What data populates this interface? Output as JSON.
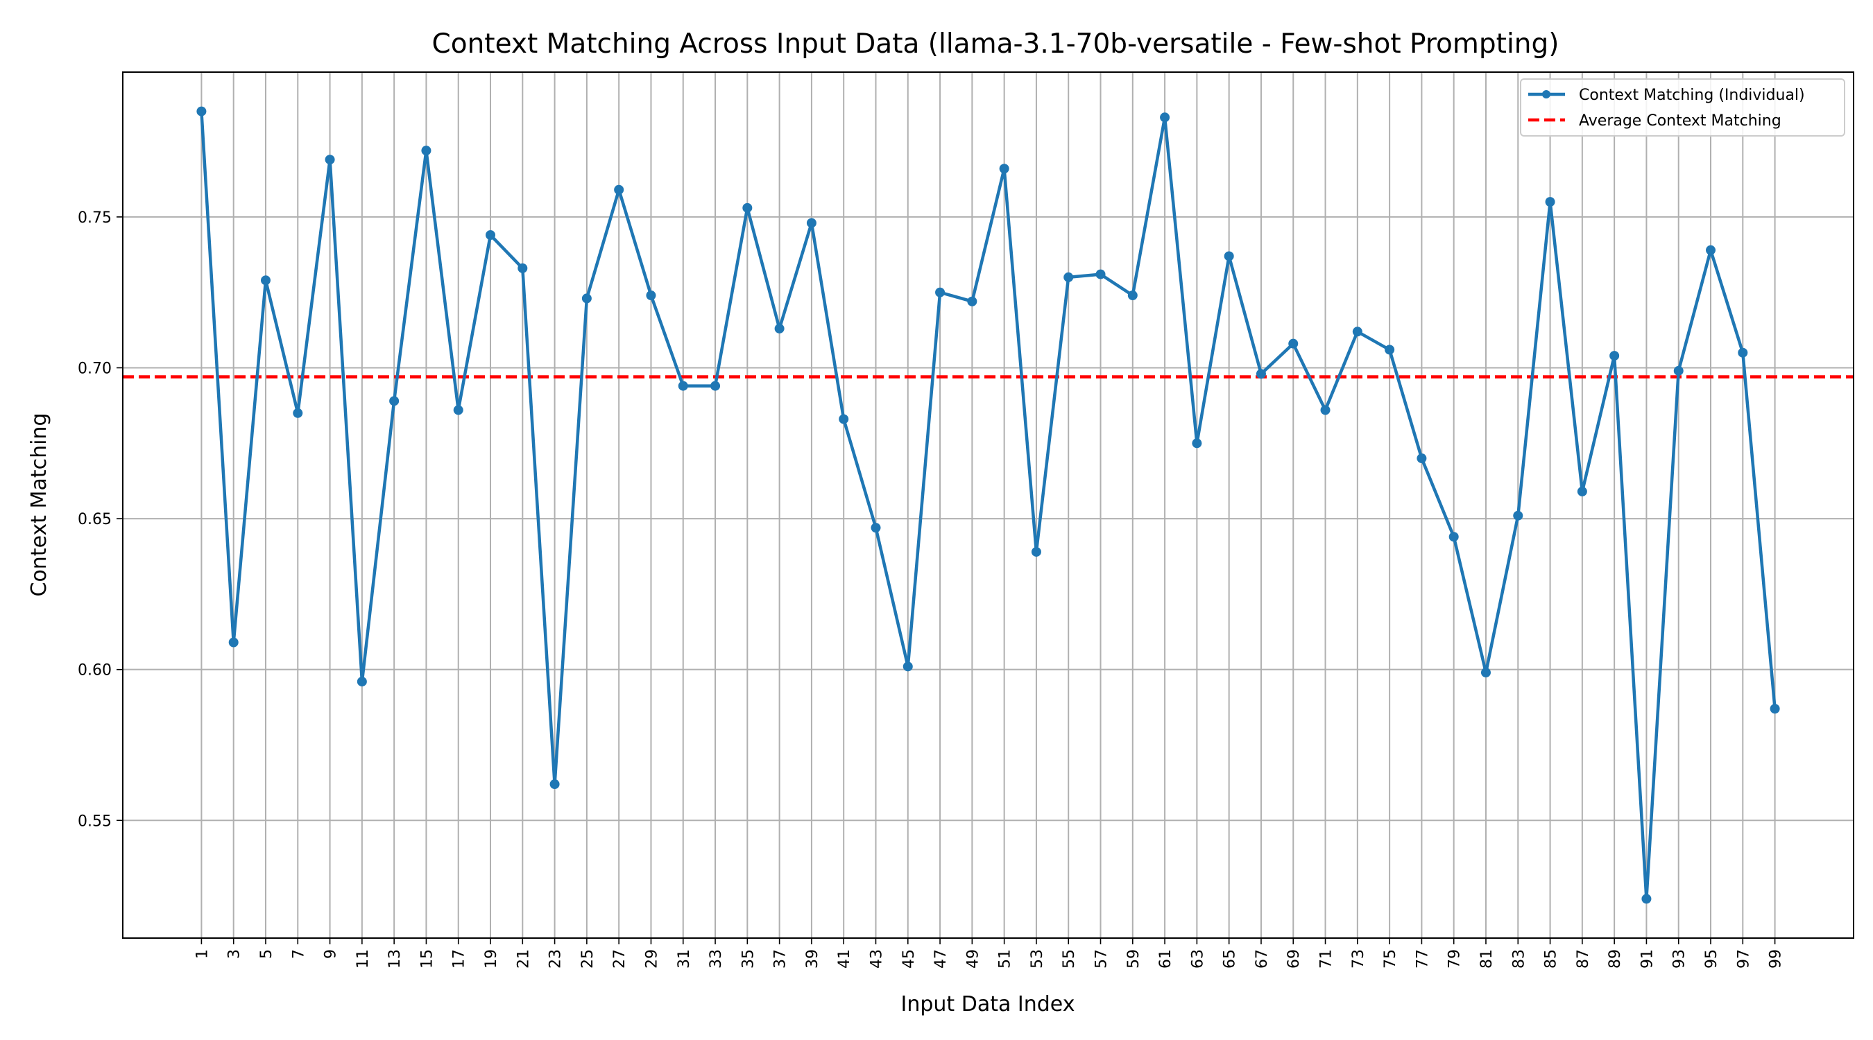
{
  "chart_data": {
    "type": "line",
    "title": "Context Matching Across Input Data (llama-3.1-70b-versatile - Few-shot Prompting)",
    "xlabel": "Input Data Index",
    "ylabel": "Context Matching",
    "x": [
      1,
      3,
      5,
      7,
      9,
      11,
      13,
      15,
      17,
      19,
      21,
      23,
      25,
      27,
      29,
      31,
      33,
      35,
      37,
      39,
      41,
      43,
      45,
      47,
      49,
      51,
      53,
      55,
      57,
      59,
      61,
      63,
      65,
      67,
      69,
      71,
      73,
      75,
      77,
      79,
      81,
      83,
      85,
      87,
      89,
      91,
      93,
      95,
      97,
      99
    ],
    "xlim": [
      -3.9,
      103.9
    ],
    "ylim": [
      0.511,
      0.798
    ],
    "yticks": [
      "0.55",
      "0.60",
      "0.65",
      "0.70",
      "0.75"
    ],
    "xticks": [
      "1",
      "3",
      "5",
      "7",
      "9",
      "11",
      "13",
      "15",
      "17",
      "19",
      "21",
      "23",
      "25",
      "27",
      "29",
      "31",
      "33",
      "35",
      "37",
      "39",
      "41",
      "43",
      "45",
      "47",
      "49",
      "51",
      "53",
      "55",
      "57",
      "59",
      "61",
      "63",
      "65",
      "67",
      "69",
      "71",
      "73",
      "75",
      "77",
      "79",
      "81",
      "83",
      "85",
      "87",
      "89",
      "91",
      "93",
      "95",
      "97",
      "99"
    ],
    "grid": true,
    "legend_position": "top-right",
    "series": [
      {
        "name": "Context Matching (Individual)",
        "color": "#1f77b4",
        "marker": "circle",
        "values": [
          0.785,
          0.609,
          0.729,
          0.685,
          0.769,
          0.596,
          0.689,
          0.772,
          0.686,
          0.744,
          0.733,
          0.562,
          0.723,
          0.759,
          0.724,
          0.694,
          0.694,
          0.753,
          0.713,
          0.748,
          0.683,
          0.647,
          0.601,
          0.725,
          0.722,
          0.766,
          0.639,
          0.73,
          0.731,
          0.724,
          0.783,
          0.675,
          0.737,
          0.698,
          0.708,
          0.686,
          0.712,
          0.706,
          0.67,
          0.644,
          0.599,
          0.651,
          0.755,
          0.659,
          0.704,
          0.524,
          0.699,
          0.739,
          0.705,
          0.587
        ]
      }
    ],
    "average": {
      "name": "Average Context Matching",
      "value": 0.697,
      "color": "#ff0000",
      "style": "dashed"
    }
  }
}
